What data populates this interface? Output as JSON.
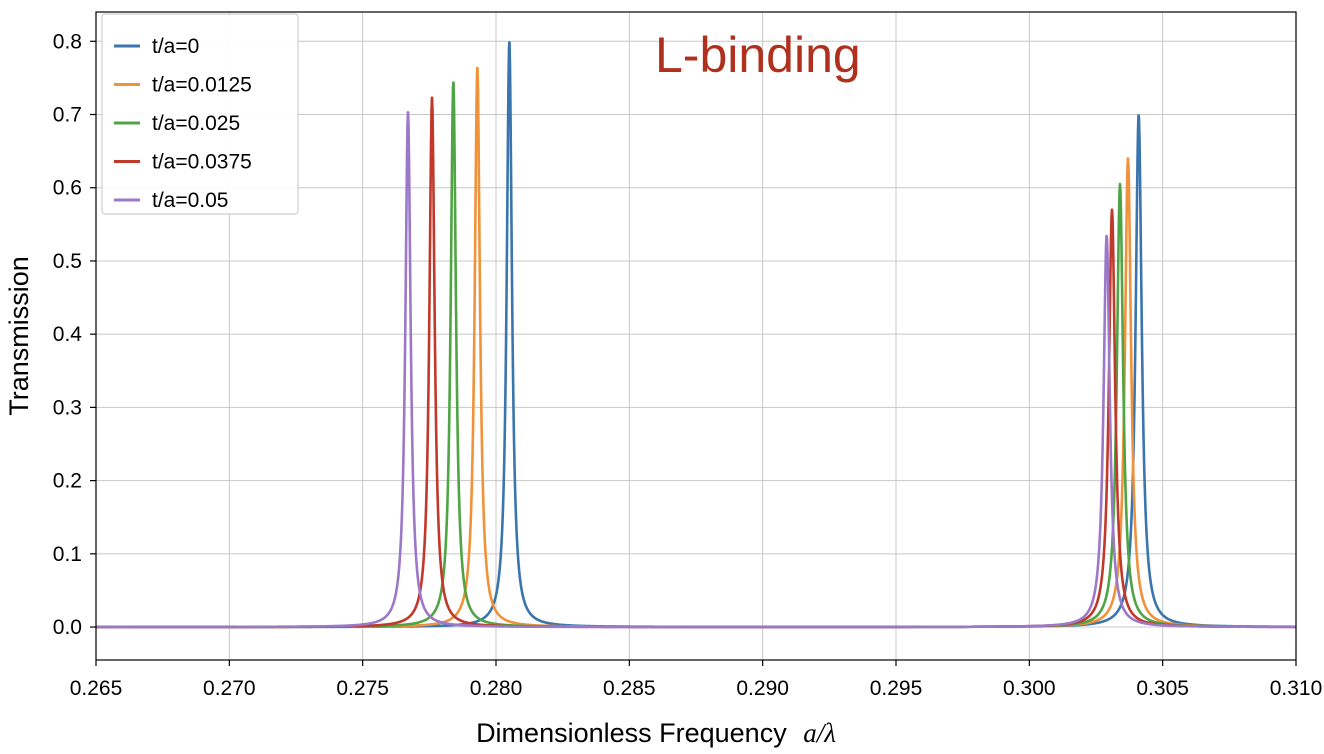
{
  "chart_data": {
    "type": "line",
    "xlabel": "Dimensionless Frequency",
    "xlabel_math": "a/λ",
    "ylabel": "Transmission",
    "annotation": "L-binding",
    "annotation_color": "#b0301e",
    "xlim": [
      0.265,
      0.31
    ],
    "ylim": [
      -0.045,
      0.84
    ],
    "xticks": [
      "0.265",
      "0.270",
      "0.275",
      "0.280",
      "0.285",
      "0.290",
      "0.295",
      "0.300",
      "0.305",
      "0.310"
    ],
    "yticks": [
      "0.0",
      "0.1",
      "0.2",
      "0.3",
      "0.4",
      "0.5",
      "0.6",
      "0.7",
      "0.8"
    ],
    "grid": true,
    "legend_position": "top-left",
    "series": [
      {
        "name": "t/a=0",
        "color": "#3a75ae",
        "peaks": [
          {
            "x": 0.2805,
            "y": 0.8,
            "width": 0.00012
          },
          {
            "x": 0.3041,
            "y": 0.7,
            "width": 0.00014
          }
        ]
      },
      {
        "name": "t/a=0.0125",
        "color": "#f0923a",
        "peaks": [
          {
            "x": 0.2793,
            "y": 0.765,
            "width": 0.00012
          },
          {
            "x": 0.3037,
            "y": 0.64,
            "width": 0.00014
          }
        ]
      },
      {
        "name": "t/a=0.025",
        "color": "#4fa443",
        "peaks": [
          {
            "x": 0.2784,
            "y": 0.745,
            "width": 0.00012
          },
          {
            "x": 0.3034,
            "y": 0.605,
            "width": 0.00014
          }
        ]
      },
      {
        "name": "t/a=0.0375",
        "color": "#c0392b",
        "peaks": [
          {
            "x": 0.2776,
            "y": 0.723,
            "width": 0.00012
          },
          {
            "x": 0.3031,
            "y": 0.57,
            "width": 0.00014
          }
        ]
      },
      {
        "name": "t/a=0.05",
        "color": "#9b78c8",
        "peaks": [
          {
            "x": 0.2767,
            "y": 0.703,
            "width": 0.00012
          },
          {
            "x": 0.3029,
            "y": 0.535,
            "width": 0.00014
          }
        ]
      }
    ]
  }
}
